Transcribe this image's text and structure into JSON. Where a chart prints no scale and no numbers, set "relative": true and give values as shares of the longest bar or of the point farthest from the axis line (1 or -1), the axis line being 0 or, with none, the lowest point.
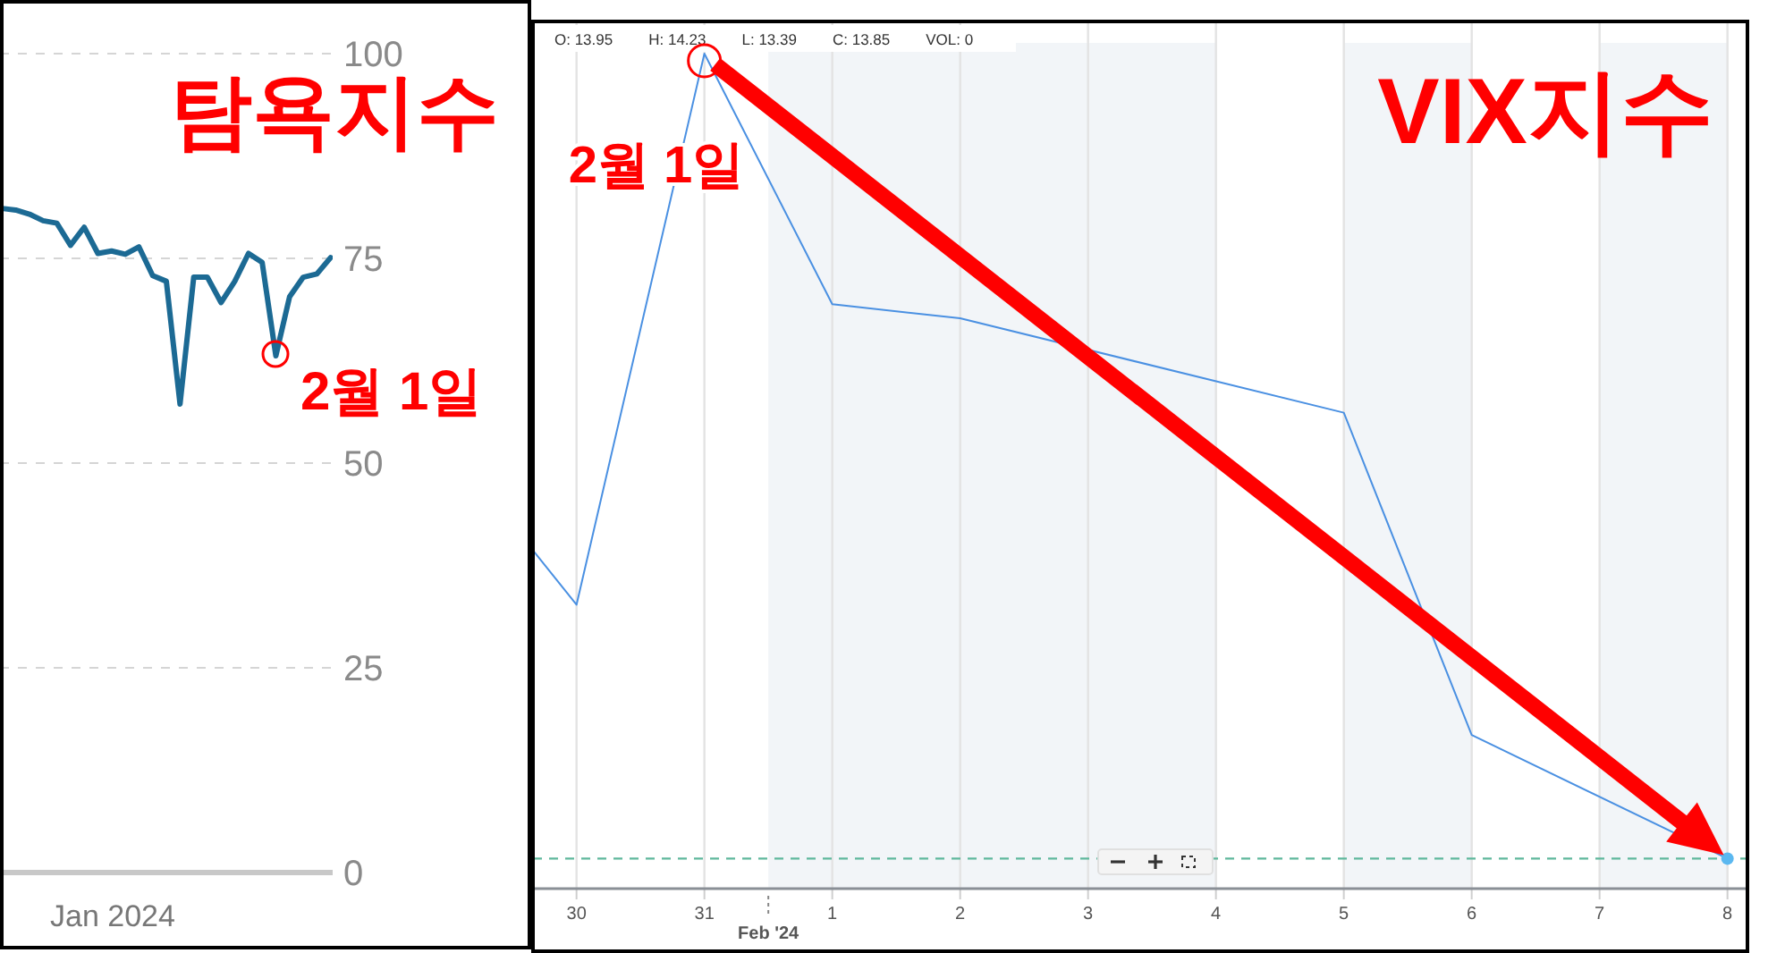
{
  "chart_data": [
    {
      "type": "line",
      "title": "탐욕지수",
      "categories": [
        null,
        null,
        null,
        null,
        null,
        null,
        null,
        null,
        null,
        null,
        null,
        null,
        null,
        null,
        null,
        null,
        null,
        null,
        null,
        null,
        null,
        null,
        null,
        null,
        null
      ],
      "series": [
        {
          "color": "#1c6a94",
          "values": [
            81.1,
            80.9,
            80.4,
            79.6,
            79.3,
            76.6,
            78.8,
            75.6,
            75.9,
            75.5,
            76.4,
            72.9,
            72.2,
            57.2,
            72.7,
            72.7,
            69.6,
            72.2,
            75.6,
            74.5,
            63.1,
            70.3,
            72.7,
            73.1,
            75.1
          ]
        }
      ],
      "ylim": [
        0,
        100
      ],
      "yticks": [
        0,
        25,
        50,
        75,
        100
      ],
      "grid": "y",
      "annotations": [
        "Jan 2024",
        "2월 1일"
      ]
    },
    {
      "type": "line",
      "title": "VIX지수",
      "relative": true,
      "x": [
        "2024-01-29T15:50",
        "2024-01-30",
        "2024-01-31",
        "2024-02-01",
        "2024-02-02",
        "2024-02-05",
        "2024-02-06",
        "2024-02-08"
      ],
      "series": [
        {
          "color": "#4a90e2",
          "values": [
            0.405,
            0.34,
            1,
            0.7,
            0.683,
            0.57,
            0.184,
            0.036
          ]
        }
      ],
      "xlim": [
        "2024-01-29T15:50",
        "2024-02-08T04:05"
      ],
      "xticks": [
        {
          "value": "2024-01-30",
          "label": "30"
        },
        {
          "value": "2024-01-31",
          "label": "31"
        },
        {
          "value": "2024-02-01",
          "label": "1"
        },
        {
          "value": "2024-02-02",
          "label": "2"
        },
        {
          "value": "2024-02-03",
          "label": "3"
        },
        {
          "value": "2024-02-04",
          "label": "4"
        },
        {
          "value": "2024-02-05",
          "label": "5"
        },
        {
          "value": "2024-02-06",
          "label": "6"
        },
        {
          "value": "2024-02-07",
          "label": "7"
        },
        {
          "value": "2024-02-08",
          "label": "8"
        }
      ],
      "grid": "x",
      "bands": [
        {
          "axis": "x",
          "from": "2024-01-31T12:00",
          "to": "2024-02-04",
          "color": "#f2f5f8"
        },
        {
          "axis": "x",
          "from": "2024-02-05",
          "to": "2024-02-06",
          "color": "#f2f5f8"
        },
        {
          "axis": "x",
          "from": "2024-02-07",
          "to": "2024-02-08",
          "color": "#f2f5f8"
        }
      ],
      "ref_lines": [
        {
          "axis": "y",
          "value": 0.036,
          "color": "#5fb89c",
          "line_style": "dashed"
        }
      ],
      "annotations": [
        "O: 13.95",
        "H: 14.23",
        "L: 13.39",
        "C: 13.85",
        "VOL: 0",
        "Feb '24",
        {
          "text": "2월 1일",
          "x": "2024-01-31",
          "y": 1
        }
      ]
    }
  ]
}
